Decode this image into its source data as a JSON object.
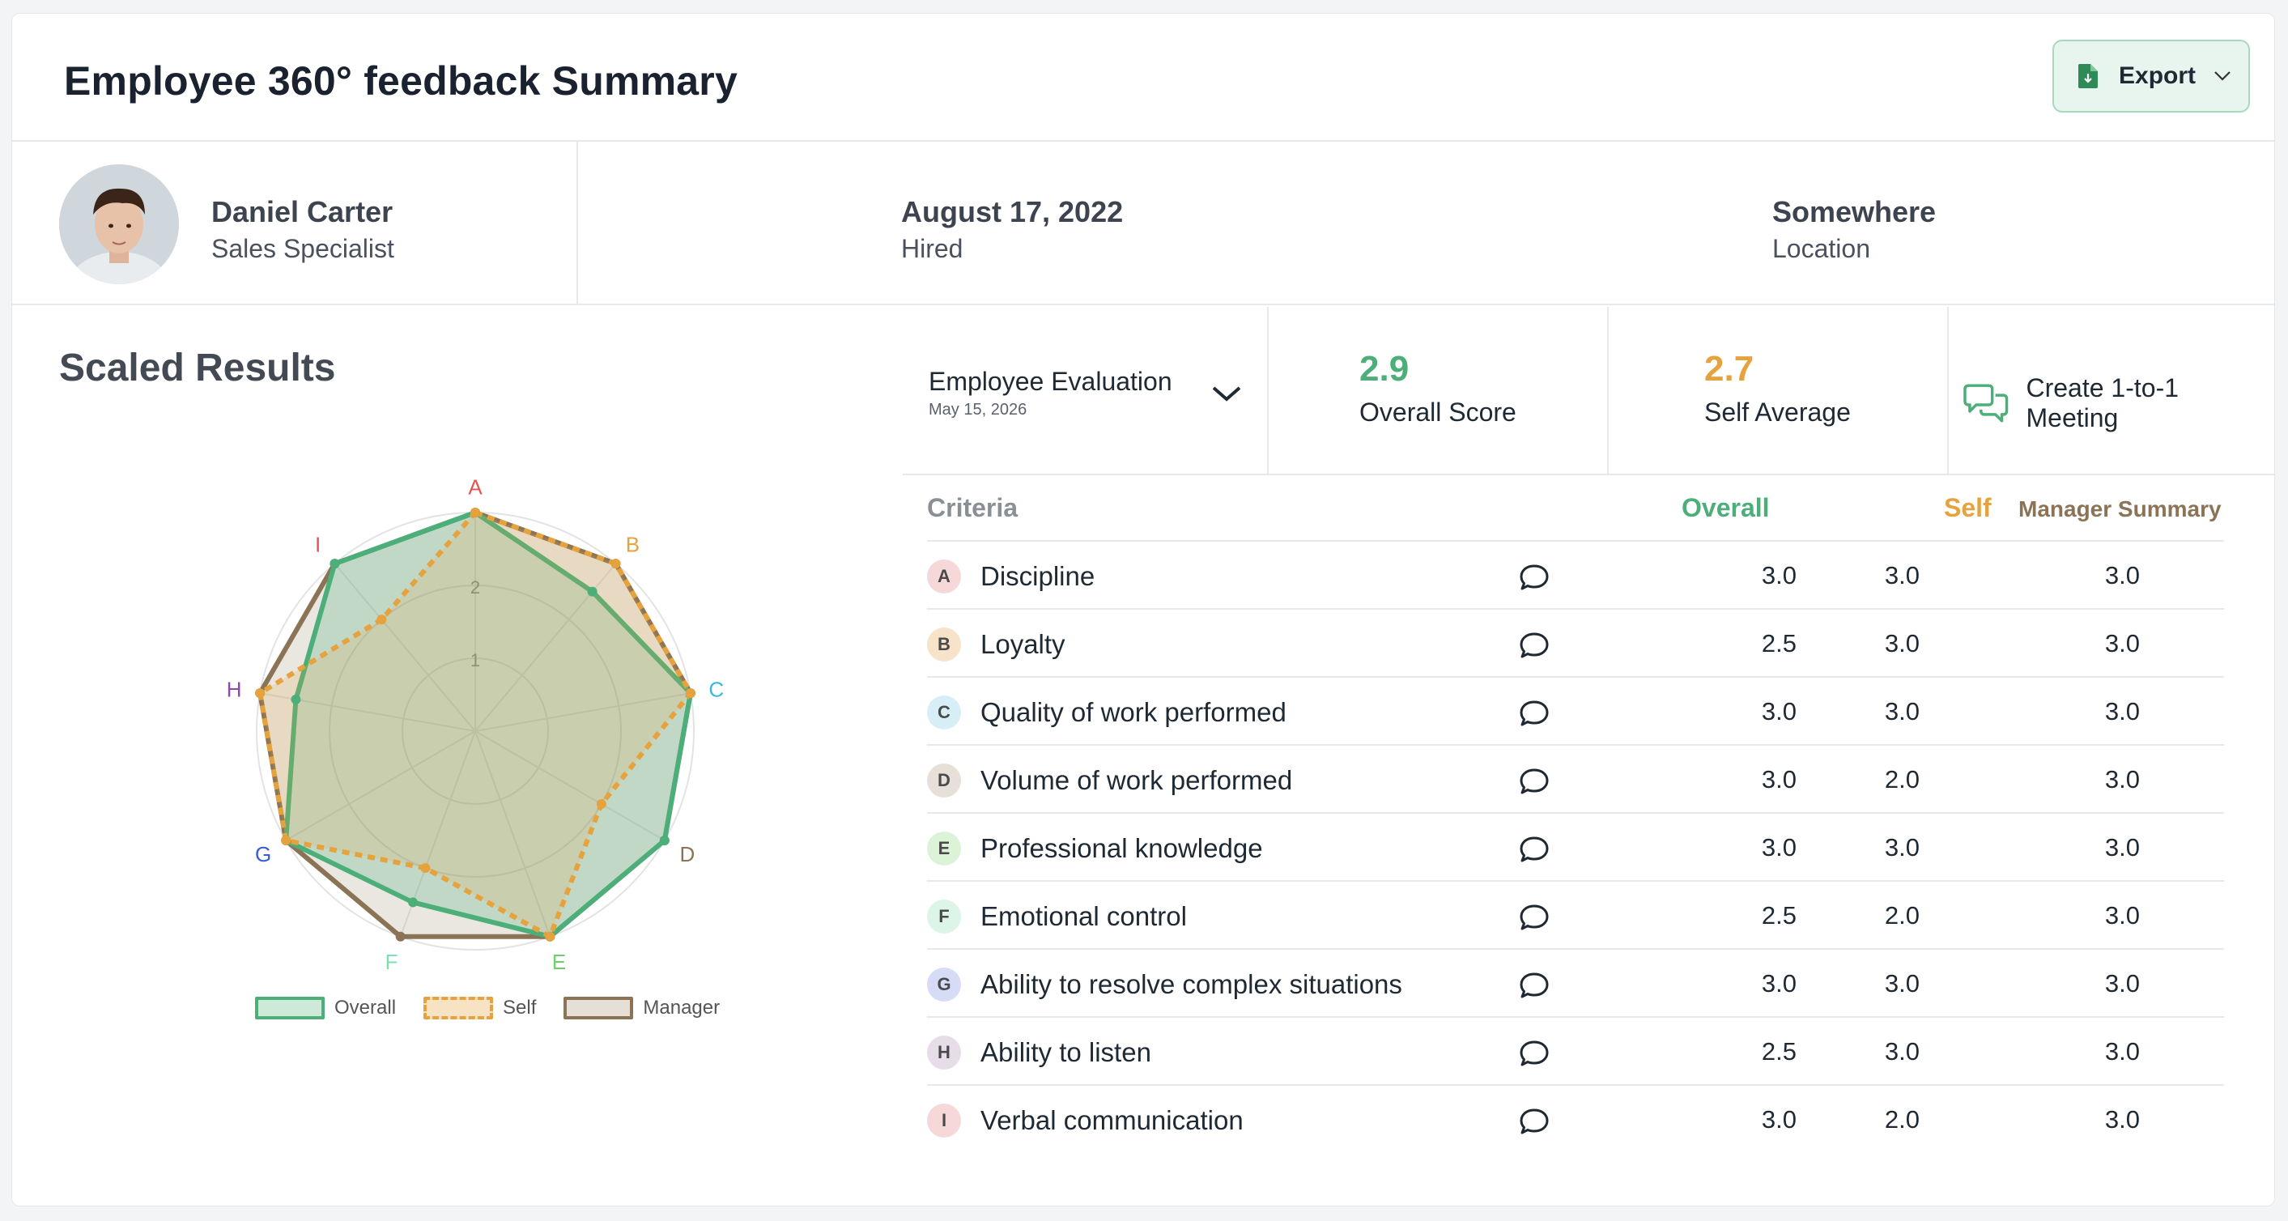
{
  "header": {
    "title": "Employee 360°  feedback Summary",
    "export_label": "Export"
  },
  "profile": {
    "name": "Daniel Carter",
    "role": "Sales Specialist",
    "hired_date": "August 17, 2022",
    "hired_label": "Hired",
    "location": "Somewhere",
    "location_label": "Location"
  },
  "scaled_results": {
    "title": "Scaled Results"
  },
  "evaluation": {
    "title": "Employee Evaluation",
    "date": "May 15, 2026",
    "overall_score": "2.9",
    "overall_label": "Overall Score",
    "self_average": "2.7",
    "self_label": "Self Average",
    "meeting_label": "Create 1-to-1 Meeting"
  },
  "colors": {
    "overall": "#4caf7a",
    "self": "#e6a23c",
    "manager": "#8b7355"
  },
  "table": {
    "headers": {
      "criteria": "Criteria",
      "overall": "Overall",
      "self": "Self",
      "manager": "Manager Summary"
    },
    "rows": [
      {
        "letter": "A",
        "name": "Discipline",
        "overall": "3.0",
        "self": "3.0",
        "manager": "3.0",
        "bg": "#f6d8d8"
      },
      {
        "letter": "B",
        "name": "Loyalty",
        "overall": "2.5",
        "self": "3.0",
        "manager": "3.0",
        "bg": "#f7e3c9"
      },
      {
        "letter": "C",
        "name": "Quality of work performed",
        "overall": "3.0",
        "self": "3.0",
        "manager": "3.0",
        "bg": "#d8eef7"
      },
      {
        "letter": "D",
        "name": "Volume of work performed",
        "overall": "3.0",
        "self": "2.0",
        "manager": "3.0",
        "bg": "#e6e0d8"
      },
      {
        "letter": "E",
        "name": "Professional knowledge",
        "overall": "3.0",
        "self": "3.0",
        "manager": "3.0",
        "bg": "#dcf3d8"
      },
      {
        "letter": "F",
        "name": "Emotional control",
        "overall": "2.5",
        "self": "2.0",
        "manager": "3.0",
        "bg": "#dcf5e8"
      },
      {
        "letter": "G",
        "name": "Ability to resolve complex situations",
        "overall": "3.0",
        "self": "3.0",
        "manager": "3.0",
        "bg": "#d6dcf5"
      },
      {
        "letter": "H",
        "name": "Ability to listen",
        "overall": "2.5",
        "self": "3.0",
        "manager": "3.0",
        "bg": "#e6dde9"
      },
      {
        "letter": "I",
        "name": "Verbal communication",
        "overall": "3.0",
        "self": "2.0",
        "manager": "3.0",
        "bg": "#f6d8d8"
      }
    ]
  },
  "chart_data": {
    "type": "radar",
    "categories": [
      "A",
      "B",
      "C",
      "D",
      "E",
      "F",
      "G",
      "H",
      "I"
    ],
    "category_colors": [
      "#e05555",
      "#e6a23c",
      "#3ab7d6",
      "#8b7355",
      "#6ccf6c",
      "#7de0b0",
      "#3b5bd6",
      "#8e4aa0",
      "#e05555"
    ],
    "ticks": [
      "1",
      "2"
    ],
    "rlim": [
      0,
      3
    ],
    "series": [
      {
        "name": "Overall",
        "values": [
          3.0,
          2.5,
          3.0,
          3.0,
          3.0,
          2.5,
          3.0,
          2.5,
          3.0
        ]
      },
      {
        "name": "Self",
        "values": [
          3.0,
          3.0,
          3.0,
          2.0,
          3.0,
          2.0,
          3.0,
          3.0,
          2.0
        ]
      },
      {
        "name": "Manager",
        "values": [
          3.0,
          3.0,
          3.0,
          3.0,
          3.0,
          3.0,
          3.0,
          3.0,
          3.0
        ]
      }
    ],
    "legend": "bottom"
  }
}
